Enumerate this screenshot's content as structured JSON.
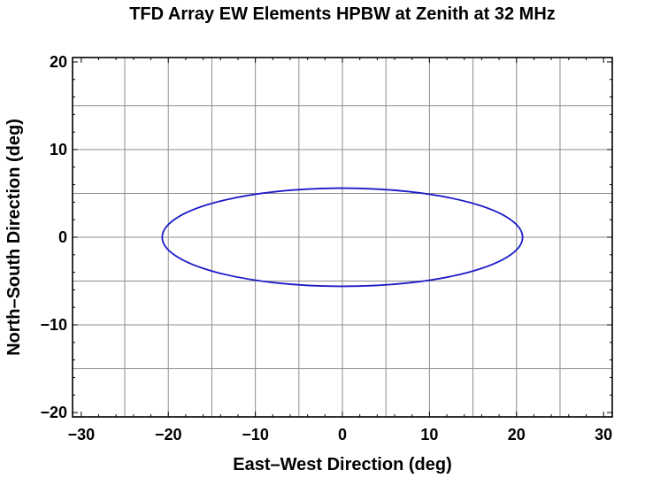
{
  "chart_data": {
    "type": "line",
    "title": "TFD Array EW Elements HPBW at Zenith at 32 MHz",
    "xlabel": "East–West Direction (deg)",
    "ylabel": "North–South Direction (deg)",
    "xlim": [
      -31,
      31
    ],
    "ylim": [
      -20.5,
      20.5
    ],
    "xticks": [
      -30,
      -20,
      -10,
      0,
      10,
      20,
      30
    ],
    "xtick_labels": [
      "−30",
      "−20",
      "−10",
      "0",
      "10",
      "20",
      "30"
    ],
    "yticks": [
      -20,
      -10,
      0,
      10,
      20
    ],
    "ytick_labels": [
      "−20",
      "−10",
      "0",
      "10",
      "20"
    ],
    "grid": true,
    "grid_x": [
      -25,
      -20,
      -15,
      -10,
      -5,
      0,
      5,
      10,
      15,
      20,
      25
    ],
    "grid_y": [
      -15,
      -10,
      -5,
      0,
      5,
      10,
      15
    ],
    "series": [
      {
        "color": "#1c1cc8",
        "shape": "ellipse",
        "center": [
          0,
          0
        ],
        "x_semi_axis": 20.7,
        "y_semi_axis": 5.6
      }
    ]
  }
}
